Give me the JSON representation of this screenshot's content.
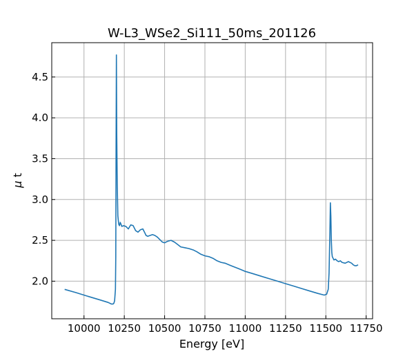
{
  "chart_data": {
    "type": "line",
    "title": "W-L3_WSe2_Si111_50ms_201126",
    "xlabel": "Energy [eV]",
    "ylabel_symbol": "μ",
    "ylabel_text": " t",
    "xlim": [
      9800,
      11790
    ],
    "ylim": [
      1.54,
      4.92
    ],
    "xticks": [
      10000,
      10250,
      10500,
      10750,
      11000,
      11250,
      11500,
      11750
    ],
    "xtick_labels": [
      "10000",
      "10250",
      "10500",
      "10750",
      "11000",
      "11250",
      "11500",
      "11750"
    ],
    "yticks": [
      2.0,
      2.5,
      3.0,
      3.5,
      4.0,
      4.5
    ],
    "ytick_labels": [
      "2.0",
      "2.5",
      "3.0",
      "3.5",
      "4.0",
      "4.5"
    ],
    "grid": true,
    "line_color": "#1f77b4",
    "series": [
      {
        "x": [
          9880,
          9950,
          10000,
          10050,
          10100,
          10150,
          10170,
          10180,
          10185,
          10190,
          10195,
          10197,
          10199,
          10201,
          10203,
          10206,
          10210,
          10215,
          10220,
          10225,
          10235,
          10245,
          10260,
          10275,
          10290,
          10305,
          10320,
          10335,
          10350,
          10365,
          10375,
          10385,
          10395,
          10410,
          10425,
          10440,
          10455,
          10470,
          10485,
          10500,
          10520,
          10540,
          10560,
          10580,
          10600,
          10625,
          10650,
          10680,
          10700,
          10725,
          10750,
          10775,
          10800,
          10825,
          10850,
          10875,
          10900,
          10925,
          10950,
          10975,
          11000,
          11050,
          11100,
          11150,
          11200,
          11250,
          11300,
          11350,
          11400,
          11450,
          11490,
          11505,
          11515,
          11520,
          11525,
          11528,
          11531,
          11534,
          11537,
          11540,
          11545,
          11550,
          11560,
          11570,
          11580,
          11590,
          11600,
          11620,
          11640,
          11660,
          11670,
          11680,
          11690,
          11700
        ],
        "y": [
          1.9,
          1.86,
          1.83,
          1.8,
          1.77,
          1.74,
          1.72,
          1.72,
          1.73,
          1.76,
          1.9,
          2.3,
          3.6,
          4.77,
          3.8,
          3.2,
          2.8,
          2.7,
          2.68,
          2.72,
          2.67,
          2.68,
          2.67,
          2.64,
          2.69,
          2.68,
          2.62,
          2.6,
          2.63,
          2.64,
          2.6,
          2.56,
          2.55,
          2.56,
          2.57,
          2.56,
          2.54,
          2.51,
          2.48,
          2.47,
          2.49,
          2.5,
          2.48,
          2.45,
          2.42,
          2.41,
          2.4,
          2.38,
          2.36,
          2.33,
          2.31,
          2.3,
          2.28,
          2.25,
          2.23,
          2.22,
          2.2,
          2.18,
          2.16,
          2.14,
          2.12,
          2.09,
          2.06,
          2.03,
          2.0,
          1.97,
          1.94,
          1.91,
          1.88,
          1.85,
          1.83,
          1.84,
          1.9,
          2.1,
          2.6,
          2.96,
          2.8,
          2.5,
          2.35,
          2.3,
          2.28,
          2.26,
          2.27,
          2.25,
          2.24,
          2.25,
          2.23,
          2.22,
          2.24,
          2.22,
          2.2,
          2.19,
          2.19,
          2.2
        ]
      }
    ]
  }
}
